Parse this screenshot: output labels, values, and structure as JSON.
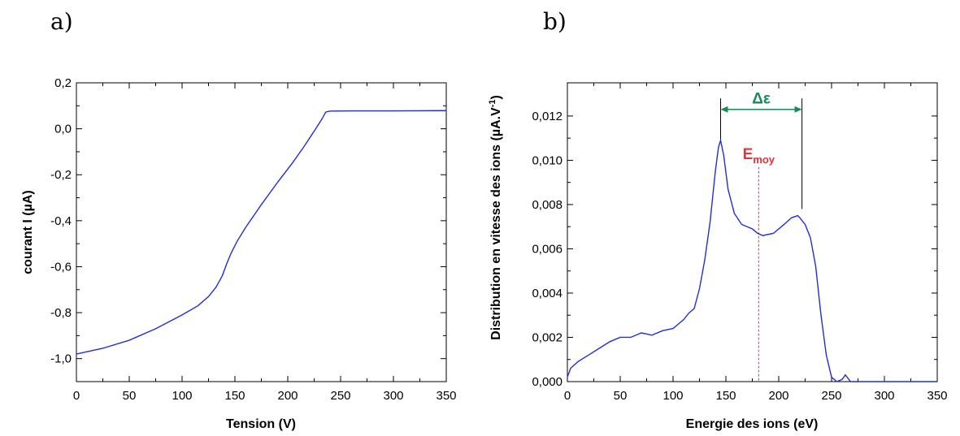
{
  "chart_data": [
    {
      "panel": "a)",
      "type": "line",
      "xlabel": "Tension (V)",
      "ylabel": "courant I (µA)",
      "xlim": [
        0,
        350
      ],
      "ylim": [
        -1.1,
        0.2
      ],
      "xticks": [
        0,
        50,
        100,
        150,
        200,
        250,
        300,
        350
      ],
      "xtick_labels": [
        "0",
        "50",
        "100",
        "150",
        "200",
        "250",
        "300",
        "350"
      ],
      "yticks": [
        -1.0,
        -0.8,
        -0.6,
        -0.4,
        -0.2,
        0.0,
        0.2
      ],
      "ytick_labels": [
        "-1,0",
        "-0,8",
        "-0,6",
        "-0,4",
        "-0,2",
        "0,0",
        "0,2"
      ],
      "grid": false,
      "series": [
        {
          "color": "#1f2fd6",
          "x": [
            0,
            10,
            25,
            50,
            75,
            100,
            115,
            125,
            132,
            138,
            142,
            146,
            152,
            160,
            175,
            190,
            205,
            215,
            225,
            232,
            236,
            240,
            260,
            300,
            350
          ],
          "y": [
            -0.98,
            -0.97,
            -0.955,
            -0.92,
            -0.87,
            -0.81,
            -0.77,
            -0.73,
            -0.69,
            -0.64,
            -0.59,
            -0.545,
            -0.49,
            -0.43,
            -0.33,
            -0.235,
            -0.145,
            -0.08,
            -0.01,
            0.04,
            0.073,
            0.077,
            0.078,
            0.078,
            0.079
          ]
        }
      ]
    },
    {
      "panel": "b)",
      "type": "line",
      "xlabel": "Energie des ions (eV)",
      "ylabel": "Distribution en vitesse des ions (µA.V",
      "ylabel_sup": "-1",
      "ylabel_end": ")",
      "xlim": [
        0,
        350
      ],
      "ylim": [
        0,
        0.0135
      ],
      "xticks": [
        0,
        50,
        100,
        150,
        200,
        250,
        300,
        350
      ],
      "xtick_labels": [
        "0",
        "50",
        "100",
        "150",
        "200",
        "250",
        "300",
        "350"
      ],
      "yticks": [
        0,
        0.002,
        0.004,
        0.006,
        0.008,
        0.01,
        0.012
      ],
      "ytick_labels": [
        "0,000",
        "0,002",
        "0,004",
        "0,006",
        "0,008",
        "0,010",
        "0,012"
      ],
      "grid": false,
      "series": [
        {
          "color": "#1f2fd6",
          "x": [
            0,
            3,
            10,
            20,
            30,
            40,
            50,
            60,
            70,
            80,
            90,
            100,
            105,
            110,
            115,
            120,
            125,
            130,
            135,
            140,
            143,
            145,
            148,
            152,
            158,
            165,
            175,
            180,
            185,
            195,
            205,
            212,
            218,
            220,
            225,
            230,
            235,
            240,
            245,
            250,
            255,
            260,
            263,
            268,
            275,
            300,
            350
          ],
          "y": [
            0.0002,
            0.0006,
            0.0009,
            0.0012,
            0.0015,
            0.0018,
            0.002,
            0.002,
            0.0022,
            0.0021,
            0.0023,
            0.0024,
            0.0026,
            0.0028,
            0.0031,
            0.0033,
            0.0042,
            0.0055,
            0.0072,
            0.0095,
            0.0106,
            0.0109,
            0.0102,
            0.0087,
            0.0076,
            0.0071,
            0.0069,
            0.0067,
            0.0066,
            0.0067,
            0.0071,
            0.0074,
            0.0075,
            0.0074,
            0.0071,
            0.0065,
            0.0052,
            0.003,
            0.0012,
            0.0002,
            0.0,
            0.0001,
            0.0003,
            0.0,
            0.0,
            0.0,
            0.0
          ]
        }
      ],
      "annotations": {
        "delta_label": "Δε",
        "delta_color": "#1a8a5a",
        "delta_x": [
          145,
          222
        ],
        "delta_y": 0.0123,
        "peak1": {
          "x": 145,
          "y_top": 0.0128,
          "y_bottom": 0.0109
        },
        "peak2": {
          "x": 222,
          "y_top": 0.0128,
          "y_bottom": 0.0078
        },
        "emoy_label": "E",
        "emoy_sub": "moy",
        "emoy_color": "#e0343a",
        "emoy_x": 181,
        "emoy_y_top": 0.0097,
        "emoy_label_y": 0.0098
      }
    }
  ]
}
